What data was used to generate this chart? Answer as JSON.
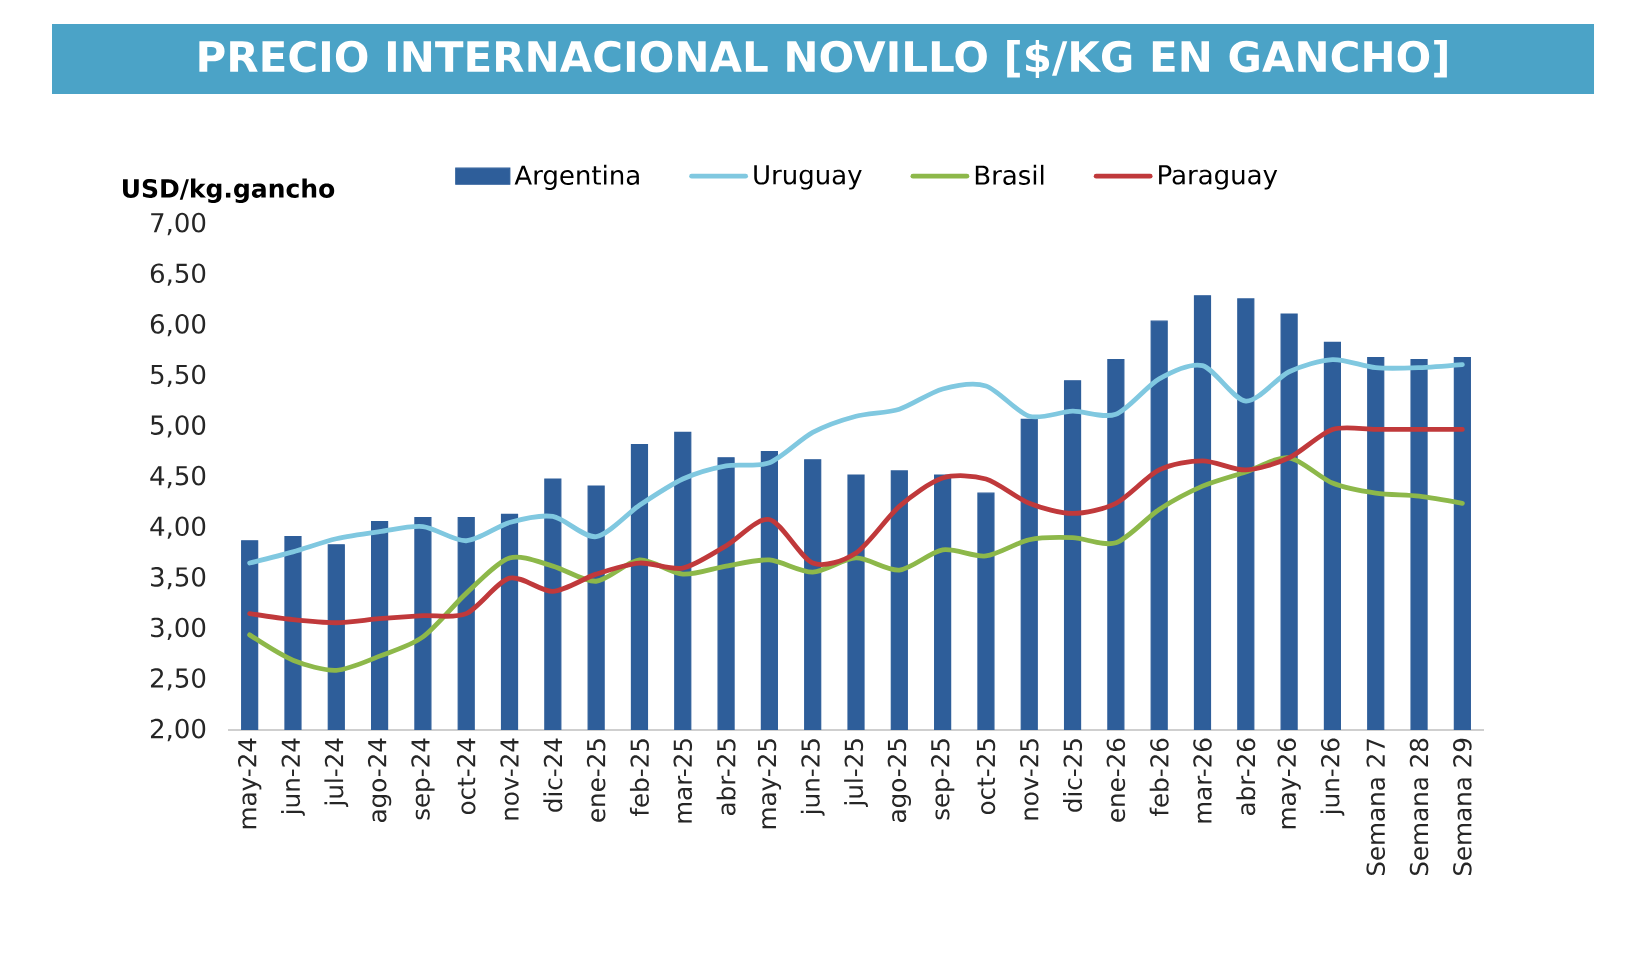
{
  "chart_data": {
    "type": "bar",
    "title": "PRECIO INTERNACIONAL NOVILLO [$/KG EN GANCHO]",
    "ylabel": "USD/kg.gancho",
    "categories": [
      "may-24",
      "jun-24",
      "jul-24",
      "ago-24",
      "sep-24",
      "oct-24",
      "nov-24",
      "dic-24",
      "ene-25",
      "feb-25",
      "mar-25",
      "abr-25",
      "may-25",
      "jun-25",
      "jul-25",
      "ago-25",
      "sep-25",
      "oct-25",
      "nov-25",
      "dic-25",
      "ene-26",
      "feb-26",
      "mar-26",
      "abr-26",
      "may-26",
      "jun-26",
      "Semana 27",
      "Semana 28",
      "Semana 29"
    ],
    "series": [
      {
        "name": "Argentina",
        "color": "#2e5e9a",
        "values": [
          3.87,
          3.91,
          3.83,
          4.06,
          4.1,
          4.1,
          4.13,
          4.48,
          4.41,
          4.82,
          4.94,
          4.69,
          4.75,
          4.67,
          4.52,
          4.56,
          4.52,
          4.34,
          5.07,
          5.45,
          5.66,
          6.04,
          6.29,
          6.26,
          6.11,
          5.83,
          5.68,
          5.66,
          5.68
        ]
      },
      {
        "name": "Uruguay",
        "type": "line",
        "color": "#80c8e0",
        "values": [
          3.65,
          3.76,
          3.89,
          3.96,
          4.01,
          3.87,
          4.05,
          4.11,
          3.91,
          4.22,
          4.48,
          4.61,
          4.64,
          4.94,
          5.1,
          5.17,
          5.37,
          5.4,
          5.1,
          5.15,
          5.12,
          5.47,
          5.6,
          5.25,
          5.54,
          5.66,
          5.58,
          5.58,
          5.61
        ]
      },
      {
        "name": "Brasil",
        "type": "line",
        "color": "#8db84a",
        "values": [
          2.94,
          2.69,
          2.59,
          2.73,
          2.92,
          3.35,
          3.7,
          3.62,
          3.47,
          3.68,
          3.54,
          3.62,
          3.68,
          3.56,
          3.7,
          3.58,
          3.78,
          3.72,
          3.88,
          3.9,
          3.85,
          4.18,
          4.41,
          4.55,
          4.69,
          4.44,
          4.34,
          4.31,
          4.24
        ]
      },
      {
        "name": "Paraguay",
        "type": "line",
        "color": "#c0393b",
        "values": [
          3.15,
          3.09,
          3.06,
          3.1,
          3.13,
          3.15,
          3.5,
          3.37,
          3.54,
          3.65,
          3.6,
          3.82,
          4.08,
          3.65,
          3.75,
          4.21,
          4.49,
          4.48,
          4.24,
          4.14,
          4.24,
          4.57,
          4.66,
          4.57,
          4.69,
          4.97,
          4.97,
          4.97,
          4.97
        ]
      }
    ],
    "ylim": [
      2,
      7
    ],
    "yticks": [
      {
        "value": 2,
        "label": "2,00"
      },
      {
        "value": 2.5,
        "label": "2,50"
      },
      {
        "value": 3,
        "label": "3,00"
      },
      {
        "value": 3.5,
        "label": "3,50"
      },
      {
        "value": 4,
        "label": "4,00"
      },
      {
        "value": 4.5,
        "label": "4,50"
      },
      {
        "value": 5,
        "label": "5,00"
      },
      {
        "value": 5.5,
        "label": "5,50"
      },
      {
        "value": 6,
        "label": "6,00"
      },
      {
        "value": 6.5,
        "label": "6,50"
      },
      {
        "value": 7,
        "label": "7,00"
      }
    ],
    "legend": "top"
  }
}
